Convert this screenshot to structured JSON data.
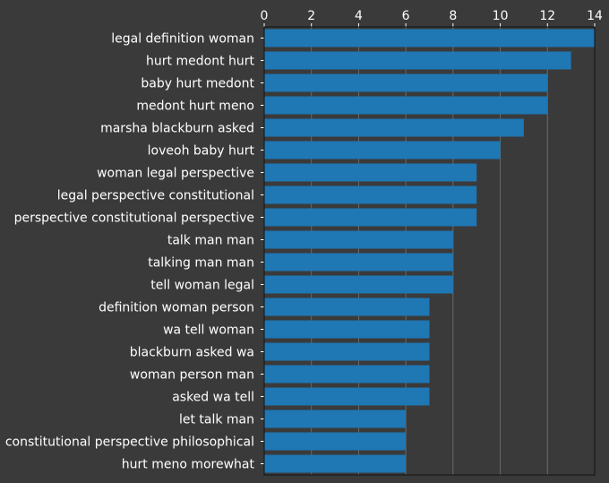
{
  "chart_data": {
    "type": "bar",
    "orientation": "horizontal",
    "categories": [
      "legal definition woman",
      "hurt medont hurt",
      "baby hurt medont",
      "medont hurt meno",
      "marsha blackburn asked",
      "loveoh baby hurt",
      "woman legal perspective",
      "legal perspective constitutional",
      "perspective constitutional perspective",
      "talk man man",
      "talking man man",
      "tell woman legal",
      "definition woman person",
      "wa tell woman",
      "blackburn asked wa",
      "woman person man",
      "asked wa tell",
      "let talk man",
      "constitutional perspective philosophical",
      "hurt meno morewhat"
    ],
    "values": [
      14,
      13,
      12,
      12,
      11,
      10,
      9,
      9,
      9,
      8,
      8,
      8,
      7,
      7,
      7,
      7,
      7,
      6,
      6,
      6
    ],
    "xticks": [
      "0",
      "2",
      "4",
      "6",
      "8",
      "10",
      "12",
      "14"
    ],
    "xlim": [
      0,
      14
    ],
    "x_axis_position": "top",
    "grid": true,
    "title": "",
    "xlabel": "",
    "ylabel": "",
    "colors": {
      "bar": "#1f77b4",
      "background": "#3a3a3a",
      "text": "#ffffff",
      "grid": "#6a6a6a"
    }
  }
}
